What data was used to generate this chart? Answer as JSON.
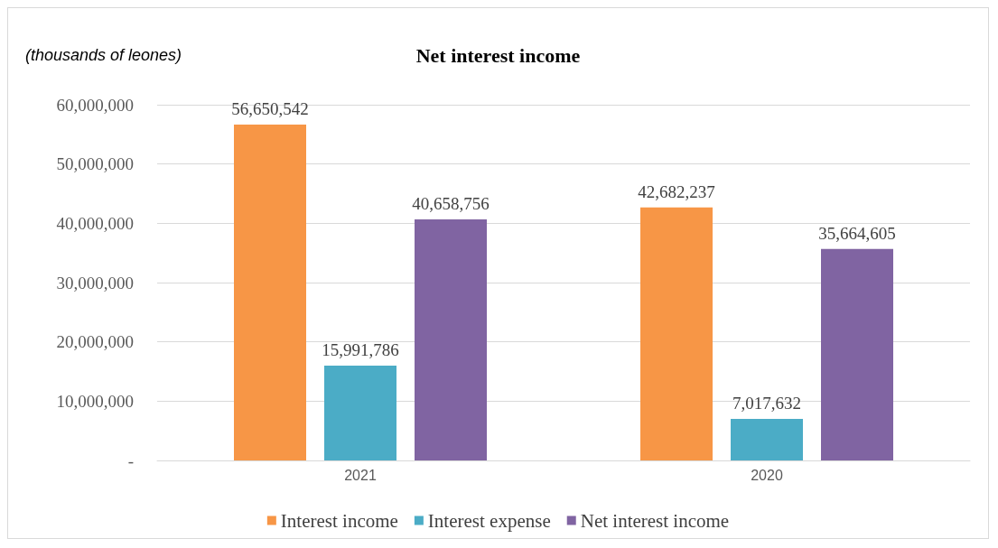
{
  "chart_data": {
    "type": "bar",
    "title": "Net interest income",
    "ylabel": "(thousands of leones)",
    "categories": [
      "2021",
      "2020"
    ],
    "series": [
      {
        "name": "Interest income",
        "color": "#f79646",
        "values": [
          56650542,
          42682237
        ],
        "value_labels": [
          "56,650,542",
          "42,682,237"
        ]
      },
      {
        "name": "Interest expense",
        "color": "#4bacc6",
        "values": [
          15991786,
          7017632
        ],
        "value_labels": [
          "15,991,786",
          "7,017,632"
        ]
      },
      {
        "name": "Net interest income",
        "color": "#8064a2",
        "values": [
          40658756,
          35664605
        ],
        "value_labels": [
          "40,658,756",
          "35,664,605"
        ]
      }
    ],
    "ylim": [
      0,
      60000000
    ],
    "yticks": [
      {
        "value": 0,
        "label": "-"
      },
      {
        "value": 10000000,
        "label": "10,000,000"
      },
      {
        "value": 20000000,
        "label": "20,000,000"
      },
      {
        "value": 30000000,
        "label": "30,000,000"
      },
      {
        "value": 40000000,
        "label": "40,000,000"
      },
      {
        "value": 50000000,
        "label": "50,000,000"
      },
      {
        "value": 60000000,
        "label": "60,000,000"
      }
    ],
    "grid": "y",
    "legend": "bottom"
  }
}
